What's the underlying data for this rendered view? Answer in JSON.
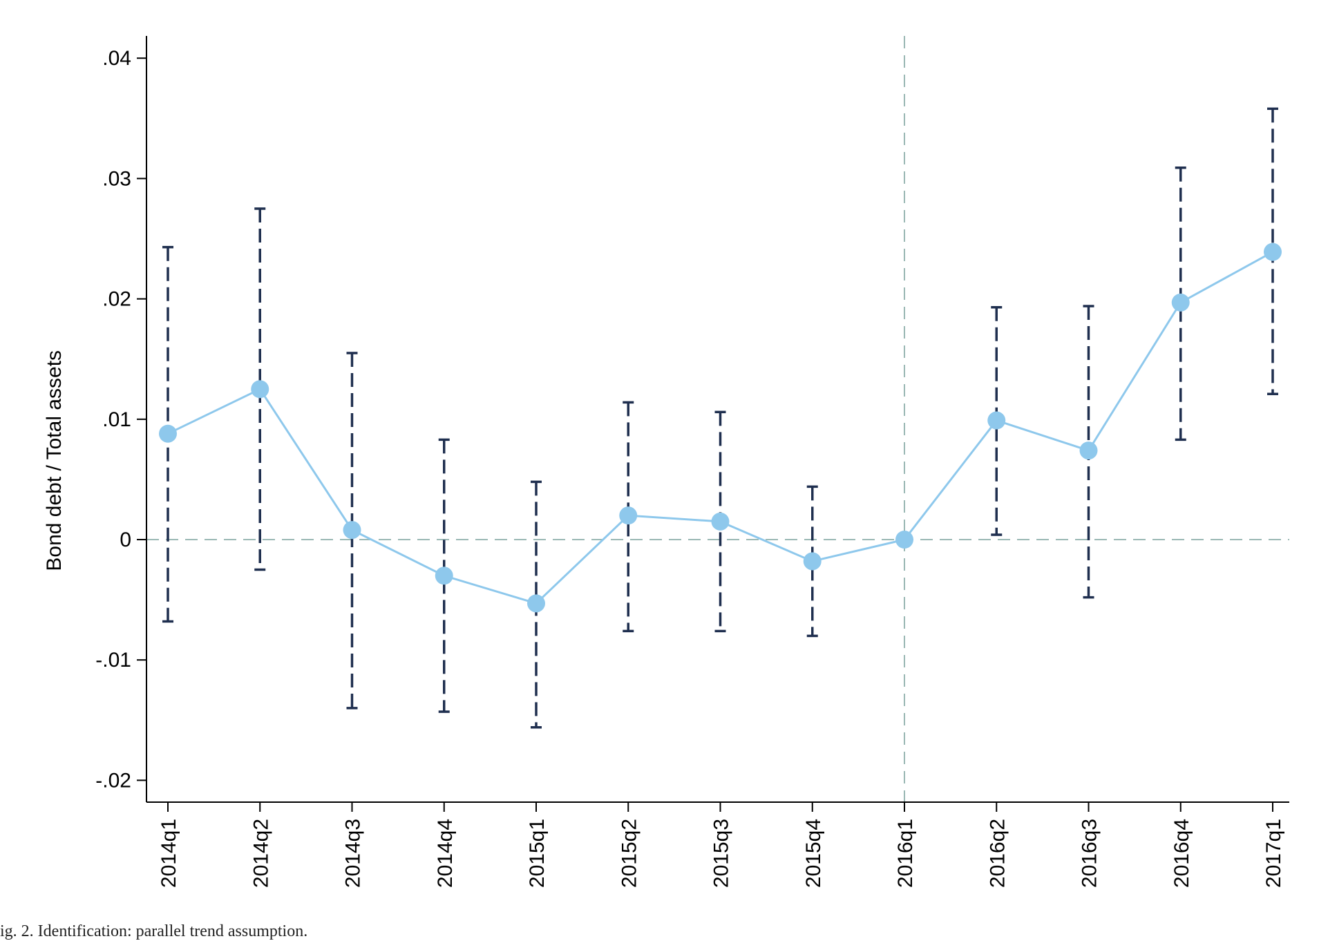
{
  "caption": "ig. 2. Identification: parallel trend assumption.",
  "chart_data": {
    "type": "line",
    "title": "",
    "xlabel": "",
    "ylabel": "Bond debt / Total assets",
    "categories": [
      "2014q1",
      "2014q2",
      "2014q3",
      "2014q4",
      "2015q1",
      "2015q2",
      "2015q3",
      "2015q4",
      "2016q1",
      "2016q2",
      "2016q3",
      "2016q4",
      "2017q1"
    ],
    "series": [
      {
        "values": [
          0.0088,
          0.0125,
          0.0008,
          -0.003,
          -0.0053,
          0.002,
          0.0015,
          -0.0018,
          0.0,
          0.0099,
          0.0074,
          0.0197,
          0.0239
        ],
        "ci_low": [
          -0.0068,
          -0.0025,
          -0.014,
          -0.0143,
          -0.0156,
          -0.0076,
          -0.0076,
          -0.008,
          null,
          0.0004,
          -0.0048,
          0.0083,
          0.0121
        ],
        "ci_high": [
          0.0243,
          0.0275,
          0.0155,
          0.0083,
          0.0048,
          0.0114,
          0.0106,
          0.0044,
          null,
          0.0193,
          0.0194,
          0.0309,
          0.0358
        ],
        "color": "#8ec8ec",
        "ci_color": "#1f2f4f"
      }
    ],
    "ylim": [
      -0.022,
      0.042
    ],
    "yticks": [
      -0.02,
      -0.01,
      0,
      0.01,
      0.02,
      0.03,
      0.04
    ],
    "ytick_labels": [
      "-.02",
      "-.01",
      "0",
      ".01",
      ".02",
      ".03",
      ".04"
    ],
    "reference_lines": {
      "y": 0,
      "x": "2016q1",
      "color": "#9ab8b4"
    },
    "grid": false,
    "legend": "none"
  }
}
